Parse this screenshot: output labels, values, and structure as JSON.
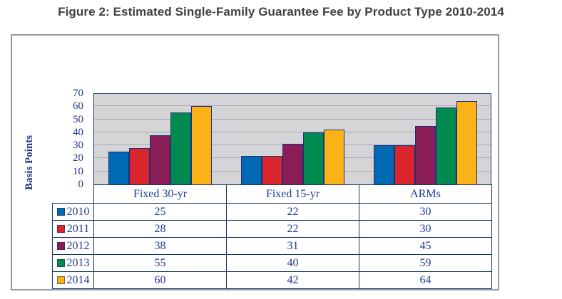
{
  "title": "Figure 2: Estimated Single-Family Guarantee Fee by Product Type 2010-2014",
  "colors": {
    "bar_outline": "#202f7d",
    "axis_line": "#17375e",
    "text_navy": "#1f3a93",
    "gridline": "#a9a9b8",
    "plot_background": "#d5d4d6",
    "figure_border": "#9598ab",
    "title_text": "#3f4041"
  },
  "chart_data": {
    "type": "bar",
    "title": "Figure 2: Estimated Single-Family Guarantee Fee by Product Type 2010-2014",
    "categories": [
      "Fixed 30-yr",
      "Fixed 15-yr",
      "ARMs"
    ],
    "series": [
      {
        "name": "2010",
        "color": "#0069b4",
        "values": [
          25,
          22,
          30
        ]
      },
      {
        "name": "2011",
        "color": "#d9262c",
        "values": [
          28,
          22,
          30
        ]
      },
      {
        "name": "2012",
        "color": "#8a1c56",
        "values": [
          38,
          31,
          45
        ]
      },
      {
        "name": "2013",
        "color": "#008a50",
        "values": [
          55,
          40,
          59
        ]
      },
      {
        "name": "2014",
        "color": "#fbb217",
        "values": [
          60,
          42,
          64
        ]
      }
    ],
    "xlabel": "",
    "ylabel": "Basis Points",
    "ylim": [
      0,
      70
    ],
    "yticks": [
      0,
      10,
      20,
      30,
      40,
      50,
      60,
      70
    ],
    "grid": true,
    "legend_position": "table-left",
    "table_shown": true
  }
}
